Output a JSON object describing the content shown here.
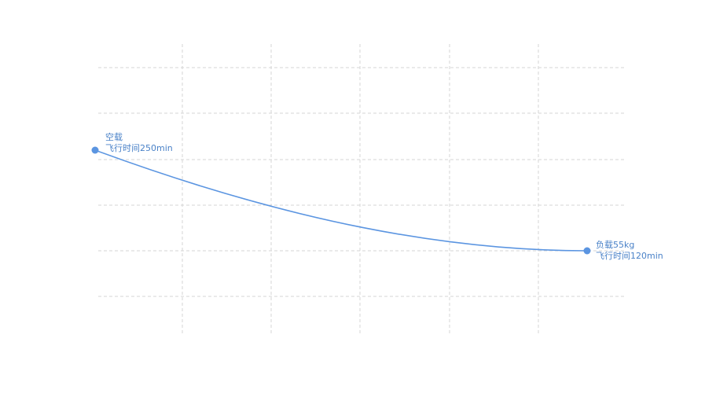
{
  "chart_data": {
    "type": "line",
    "title": "",
    "xlabel": "",
    "ylabel": "",
    "grid": true,
    "legend": "none",
    "colors": {
      "line": "#5b95e1",
      "grid": "#d6d6d6",
      "label": "#4a82c8"
    },
    "series": [
      {
        "values": [
          {
            "x": 0,
            "y": 250
          },
          {
            "x": 55,
            "y": 120
          }
        ]
      }
    ],
    "annotations": [
      {
        "line1": "空载",
        "line2": "飞行时间250min"
      },
      {
        "line1": "负载55kg",
        "line2": "飞行时间120min"
      }
    ]
  }
}
